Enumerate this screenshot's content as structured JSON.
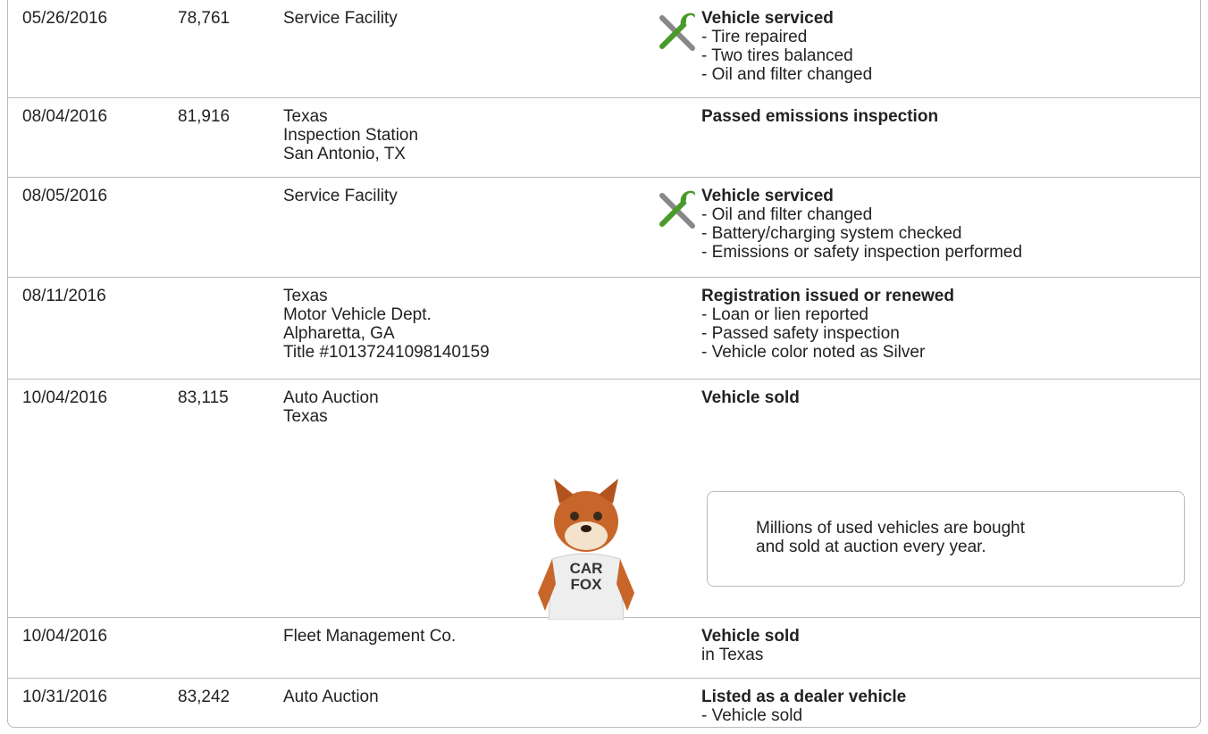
{
  "rows": [
    {
      "date": "05/26/2016",
      "mileage": "78,761",
      "source": [
        "Service Facility"
      ],
      "icon": true,
      "comment": {
        "title": "Vehicle serviced",
        "items": [
          "- Tire repaired",
          "- Two tires balanced",
          "- Oil and filter changed"
        ]
      }
    },
    {
      "date": "08/04/2016",
      "mileage": "81,916",
      "source": [
        "Texas",
        "Inspection Station",
        "San Antonio, TX"
      ],
      "comment": {
        "title": "Passed emissions inspection",
        "items": []
      }
    },
    {
      "date": "08/05/2016",
      "source": [
        "Service Facility"
      ],
      "icon": true,
      "comment": {
        "title": "Vehicle serviced",
        "items": [
          "- Oil and filter changed",
          "- Battery/charging system checked",
          "- Emissions or safety inspection performed"
        ]
      }
    },
    {
      "date": "08/11/2016",
      "source": [
        "Texas",
        "Motor Vehicle Dept.",
        "Alpharetta, GA",
        "Title #10137241098140159"
      ],
      "comment": {
        "title": "Registration issued or renewed",
        "items": [
          "- Loan or lien reported",
          "- Passed safety inspection",
          "- Vehicle color noted as Silver"
        ]
      }
    },
    {
      "date": "10/04/2016",
      "mileage": "83,115",
      "source": [
        "Auto Auction",
        "Texas"
      ],
      "comment": {
        "title": "Vehicle sold",
        "items": []
      }
    },
    {
      "date": "10/04/2016",
      "source": [
        "Fleet Management Co."
      ],
      "comment": {
        "title": "Vehicle sold",
        "items": [
          "in Texas"
        ]
      }
    },
    {
      "date": "10/31/2016",
      "mileage": "83,242",
      "source": [
        "Auto Auction"
      ],
      "comment": {
        "title": "Listed as a dealer vehicle",
        "items": [
          "- Vehicle sold"
        ]
      }
    }
  ],
  "callout": {
    "lines": [
      "Millions of used vehicles are bought",
      "and sold at auction every year."
    ],
    "badge": [
      "CAR",
      "FOX"
    ]
  }
}
